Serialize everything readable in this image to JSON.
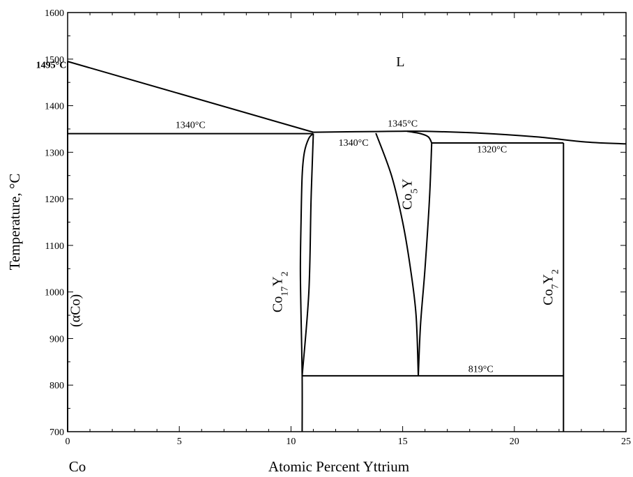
{
  "chart_data": {
    "type": "line",
    "xlabel": "Atomic Percent Yttrium",
    "ylabel": "Temperature, °C",
    "xlim": [
      0,
      25
    ],
    "ylim": [
      700,
      1600
    ],
    "x_ticks": [
      0,
      5,
      10,
      15,
      20,
      25
    ],
    "x_tick_labels": [
      "0",
      "5",
      "10",
      "15",
      "20",
      "25"
    ],
    "y_ticks": [
      700,
      800,
      900,
      1000,
      1100,
      1200,
      1300,
      1400,
      1500,
      1600
    ],
    "y_tick_labels": [
      "700",
      "800",
      "900",
      "1000",
      "1100",
      "1200",
      "1300",
      "1400",
      "1500",
      "1600"
    ],
    "left_element_label": "Co",
    "grid": false,
    "phase_boundaries": [
      {
        "points": [
          [
            0,
            700
          ],
          [
            0,
            1495
          ]
        ]
      },
      {
        "points": [
          [
            0,
            1495
          ],
          [
            11.0,
            1343
          ]
        ]
      },
      {
        "points": [
          [
            0,
            1340
          ],
          [
            11.0,
            1340
          ]
        ]
      },
      {
        "points": [
          [
            11.0,
            1343
          ],
          [
            12.5,
            1344
          ],
          [
            13.8,
            1344.5
          ],
          [
            14.8,
            1345
          ],
          [
            16.0,
            1345
          ],
          [
            18.5,
            1341
          ],
          [
            21.0,
            1333
          ],
          [
            23.2,
            1322
          ],
          [
            25,
            1318
          ]
        ]
      },
      {
        "points": [
          [
            11.0,
            1340
          ],
          [
            10.8,
            1330
          ],
          [
            10.6,
            1300
          ],
          [
            10.5,
            1250
          ],
          [
            10.45,
            1150
          ],
          [
            10.42,
            1050
          ],
          [
            10.45,
            950
          ],
          [
            10.5,
            820
          ],
          [
            10.5,
            700
          ]
        ]
      },
      {
        "points": [
          [
            11.0,
            1340
          ],
          [
            10.9,
            1200
          ],
          [
            10.8,
            1000
          ],
          [
            10.5,
            820
          ]
        ]
      },
      {
        "points": [
          [
            13.8,
            1341
          ],
          [
            14.5,
            1250
          ],
          [
            15.0,
            1150
          ],
          [
            15.35,
            1050
          ],
          [
            15.6,
            950
          ],
          [
            15.7,
            820
          ]
        ]
      },
      {
        "points": [
          [
            16.3,
            1320
          ],
          [
            16.2,
            1200
          ],
          [
            16.0,
            1050
          ],
          [
            15.8,
            930
          ],
          [
            15.7,
            820
          ]
        ]
      },
      {
        "points": [
          [
            15.2,
            1345
          ],
          [
            15.8,
            1340
          ],
          [
            16.15,
            1333
          ],
          [
            16.3,
            1320
          ]
        ]
      },
      {
        "points": [
          [
            16.3,
            1320
          ],
          [
            22.2,
            1320
          ]
        ]
      },
      {
        "points": [
          [
            22.2,
            1320
          ],
          [
            22.2,
            700
          ]
        ]
      },
      {
        "points": [
          [
            10.5,
            820
          ],
          [
            22.2,
            820
          ]
        ]
      }
    ],
    "annotations": [
      {
        "text": "1495°C",
        "x": -0.05,
        "y": 1481,
        "bold": true,
        "anchor": "end"
      },
      {
        "text": "1340°C",
        "x": 5.5,
        "y": 1352,
        "anchor": "middle"
      },
      {
        "text": "1345°C",
        "x": 15.0,
        "y": 1355,
        "anchor": "middle"
      },
      {
        "text": "1340°C",
        "x": 12.8,
        "y": 1314,
        "anchor": "middle"
      },
      {
        "text": "1320°C",
        "x": 19.0,
        "y": 1300,
        "anchor": "middle"
      },
      {
        "text": "819°C",
        "x": 18.5,
        "y": 828,
        "anchor": "middle"
      }
    ],
    "phase_labels": [
      {
        "name": "L",
        "base": "L",
        "sub1": "",
        "mid": "",
        "sub2": "",
        "x": 14.9,
        "y": 1485,
        "rotate": false
      },
      {
        "name": "(αCo)",
        "base": "(αCo)",
        "sub1": "",
        "mid": "",
        "sub2": "",
        "x": 0.55,
        "y": 960,
        "rotate": true
      },
      {
        "name": "Co17Y2",
        "base": "Co",
        "sub1": "17",
        "mid": "Y",
        "sub2": "2",
        "x": 9.6,
        "y": 1000,
        "rotate": true
      },
      {
        "name": "Co5Y",
        "base": "Co",
        "sub1": "5",
        "mid": "Y",
        "sub2": "",
        "x": 15.4,
        "y": 1210,
        "rotate": true
      },
      {
        "name": "Co7Y2",
        "base": "Co",
        "sub1": "7",
        "mid": "Y",
        "sub2": "2",
        "x": 21.7,
        "y": 1010,
        "rotate": true
      }
    ]
  }
}
